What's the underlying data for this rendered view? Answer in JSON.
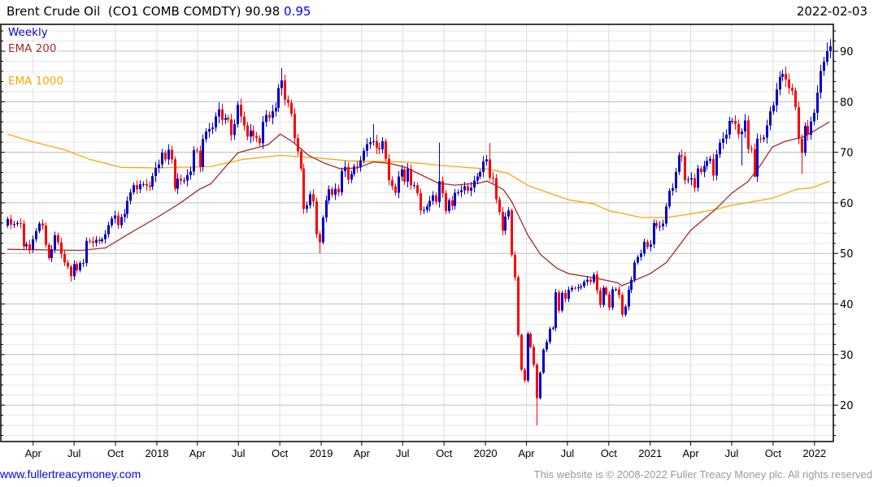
{
  "header": {
    "title": "Brent Crude Oil  (CO1 COMB COMDTY) 90.98",
    "change": "0.95",
    "date": "2022-02-03"
  },
  "legend": {
    "weekly": "Weekly",
    "ema200": "EMA 200",
    "ema1000": "EMA 1000"
  },
  "footer": {
    "link": "www.fullertreacymoney.com",
    "copyright": "This website is © 2008-2022 Fuller Treacy Money plc. All rights reserved"
  },
  "colors": {
    "up": "#0000cc",
    "down": "#ff0000",
    "ema200": "#a52a2a",
    "ema1000": "#ffa500",
    "grid_major": "#bdbdbd",
    "grid_minor": "#e6e6e6"
  },
  "chart_data": {
    "type": "candlestick",
    "title": "Brent Crude Oil (CO1 COMB COMDTY)",
    "ylim": [
      12.8,
      95.3
    ],
    "yticks": [
      20,
      30,
      40,
      50,
      60,
      70,
      80,
      90
    ],
    "grid": true,
    "legend_placement": "top-left",
    "xticks": [
      {
        "date": "2017-04-01",
        "label": "Apr"
      },
      {
        "date": "2017-07-01",
        "label": "Jul"
      },
      {
        "date": "2017-10-01",
        "label": "Oct"
      },
      {
        "date": "2018-01-01",
        "label": "2018"
      },
      {
        "date": "2018-04-01",
        "label": "Apr"
      },
      {
        "date": "2018-07-01",
        "label": "Jul"
      },
      {
        "date": "2018-10-01",
        "label": "Oct"
      },
      {
        "date": "2019-01-01",
        "label": "2019"
      },
      {
        "date": "2019-04-01",
        "label": "Apr"
      },
      {
        "date": "2019-07-01",
        "label": "Jul"
      },
      {
        "date": "2019-10-01",
        "label": "Oct"
      },
      {
        "date": "2020-01-01",
        "label": "2020"
      },
      {
        "date": "2020-04-01",
        "label": "Apr"
      },
      {
        "date": "2020-07-01",
        "label": "Jul"
      },
      {
        "date": "2020-10-01",
        "label": "Oct"
      },
      {
        "date": "2021-01-01",
        "label": "2021"
      },
      {
        "date": "2021-04-01",
        "label": "Apr"
      },
      {
        "date": "2021-07-01",
        "label": "Jul"
      },
      {
        "date": "2021-10-01",
        "label": "Oct"
      },
      {
        "date": "2022-01-01",
        "label": "2022"
      }
    ],
    "candles": {
      "start_date": "2017-02-03",
      "interval_days": 7,
      "first_open": 55.5,
      "default_wick_pct": 1.3,
      "closes": [
        56.8,
        55.7,
        55.8,
        56.0,
        55.9,
        51.4,
        51.8,
        50.8,
        52.8,
        54.4,
        55.9,
        55.5,
        51.7,
        49.1,
        50.8,
        53.6,
        52.2,
        49.9,
        48.2,
        47.4,
        45.5,
        47.9,
        46.7,
        48.1,
        48.1,
        52.5,
        52.4,
        52.1,
        52.7,
        52.4,
        52.8,
        53.8,
        55.6,
        56.9,
        57.5,
        55.6,
        57.2,
        57.8,
        60.4,
        62.1,
        63.5,
        62.7,
        63.7,
        63.7,
        63.4,
        63.2,
        65.3,
        66.9,
        67.6,
        69.9,
        68.6,
        70.5,
        68.6,
        62.8,
        64.8,
        64.4,
        64.4,
        65.5,
        66.2,
        70.4,
        70.3,
        67.1,
        72.6,
        74.1,
        74.6,
        74.9,
        77.1,
        78.5,
        76.4,
        76.8,
        76.5,
        73.4,
        75.6,
        79.4,
        77.1,
        75.3,
        73.1,
        74.3,
        73.2,
        72.8,
        71.8,
        76.0,
        77.4,
        76.8,
        78.1,
        78.8,
        82.7,
        84.2,
        80.4,
        79.8,
        77.6,
        72.8,
        70.2,
        66.8,
        58.8,
        59.5,
        61.7,
        60.3,
        53.8,
        52.2,
        57.1,
        60.5,
        62.7,
        61.6,
        62.8,
        62.1,
        66.3,
        67.1,
        64.6,
        65.7,
        67.2,
        67.0,
        68.4,
        70.3,
        71.6,
        72.0,
        72.2,
        70.9,
        70.6,
        72.2,
        68.7,
        64.5,
        63.3,
        62.0,
        65.2,
        66.6,
        64.2,
        66.7,
        63.5,
        63.5,
        61.9,
        58.5,
        58.6,
        59.3,
        60.4,
        61.5,
        60.2,
        64.3,
        61.9,
        58.4,
        60.5,
        59.4,
        62.0,
        62.1,
        62.5,
        63.3,
        62.4,
        63.0,
        64.4,
        65.2,
        66.1,
        68.2,
        68.6,
        65.0,
        64.9,
        60.7,
        58.2,
        54.5,
        57.3,
        58.5,
        49.7,
        45.3,
        33.9,
        27.0,
        24.9,
        34.1,
        31.5,
        28.0,
        21.4,
        26.4,
        31.0,
        32.5,
        35.1,
        35.3,
        42.3,
        38.7,
        42.2,
        41.0,
        42.8,
        43.2,
        43.1,
        43.3,
        43.5,
        44.4,
        44.8,
        44.4,
        45.8,
        42.7,
        39.8,
        43.2,
        41.9,
        39.3,
        42.9,
        42.9,
        41.8,
        37.9,
        39.5,
        42.8,
        44.8,
        48.2,
        49.3,
        50.0,
        52.3,
        51.3,
        51.8,
        56.0,
        55.4,
        55.4,
        55.9,
        59.3,
        62.4,
        62.9,
        66.1,
        69.4,
        69.2,
        64.5,
        64.6,
        64.9,
        63.0,
        66.8,
        66.1,
        67.3,
        68.3,
        68.7,
        65.4,
        69.6,
        71.9,
        72.7,
        73.5,
        76.2,
        76.2,
        75.6,
        73.6,
        74.1,
        76.3,
        70.7,
        70.6,
        65.2,
        72.7,
        72.6,
        72.9,
        75.3,
        78.1,
        79.3,
        82.4,
        84.9,
        85.5,
        84.4,
        82.7,
        82.2,
        78.9,
        72.7,
        69.9,
        75.2,
        73.5,
        76.1,
        77.8,
        81.8,
        86.1,
        87.9,
        90.0,
        90.98
      ],
      "extremes": [
        {
          "date": "2017-06-23",
          "low": 44.4
        },
        {
          "date": "2018-10-05",
          "high": 86.7
        },
        {
          "date": "2018-12-28",
          "low": 50.0
        },
        {
          "date": "2019-04-26",
          "high": 75.6
        },
        {
          "date": "2019-09-20",
          "high": 71.9
        },
        {
          "date": "2020-01-10",
          "high": 71.8
        },
        {
          "date": "2020-04-24",
          "low": 16.0
        },
        {
          "date": "2021-07-23",
          "low": 67.4
        },
        {
          "date": "2021-08-20",
          "low": 65.0
        },
        {
          "date": "2021-12-03",
          "low": 65.7
        },
        {
          "date": "2022-01-28",
          "high": 91.7
        },
        {
          "date": "2022-02-03",
          "high": 91.7,
          "low": 87.7
        }
      ]
    },
    "series": [
      {
        "name": "EMA 200",
        "points": [
          [
            "2017-02-03",
            50.8
          ],
          [
            "2017-07-16",
            50.6
          ],
          [
            "2017-09-09",
            51.1
          ],
          [
            "2017-11-02",
            54.0
          ],
          [
            "2018-01-01",
            57.1
          ],
          [
            "2018-02-19",
            59.8
          ],
          [
            "2018-04-04",
            62.6
          ],
          [
            "2018-05-01",
            63.8
          ],
          [
            "2018-06-06",
            67.5
          ],
          [
            "2018-06-30",
            69.9
          ],
          [
            "2018-09-05",
            71.5
          ],
          [
            "2018-10-02",
            73.6
          ],
          [
            "2018-10-29",
            72.1
          ],
          [
            "2018-12-04",
            69.4
          ],
          [
            "2019-01-09",
            67.8
          ],
          [
            "2019-02-14",
            66.7
          ],
          [
            "2019-03-22",
            66.9
          ],
          [
            "2019-04-27",
            68.1
          ],
          [
            "2019-06-02",
            67.8
          ],
          [
            "2019-07-08",
            67.0
          ],
          [
            "2019-09-18",
            63.9
          ],
          [
            "2019-10-24",
            63.5
          ],
          [
            "2019-12-17",
            63.9
          ],
          [
            "2020-01-05",
            64.3
          ],
          [
            "2020-02-10",
            62.6
          ],
          [
            "2020-02-28",
            60.3
          ],
          [
            "2020-04-05",
            53.5
          ],
          [
            "2020-05-02",
            49.8
          ],
          [
            "2020-06-07",
            47.1
          ],
          [
            "2020-07-04",
            46.0
          ],
          [
            "2020-08-28",
            45.2
          ],
          [
            "2020-10-21",
            44.2
          ],
          [
            "2020-10-30",
            43.6
          ],
          [
            "2021-01-01",
            46.0
          ],
          [
            "2021-02-06",
            48.2
          ],
          [
            "2021-04-01",
            54.6
          ],
          [
            "2021-05-26",
            58.7
          ],
          [
            "2021-07-01",
            61.9
          ],
          [
            "2021-08-06",
            64.2
          ],
          [
            "2021-09-02",
            67.3
          ],
          [
            "2021-09-29",
            71.0
          ],
          [
            "2021-10-26",
            72.1
          ],
          [
            "2021-12-10",
            73.1
          ],
          [
            "2022-02-03",
            76.0
          ]
        ]
      },
      {
        "name": "EMA 1000",
        "points": [
          [
            "2017-02-03",
            73.6
          ],
          [
            "2017-03-30",
            72.1
          ],
          [
            "2017-06-10",
            70.5
          ],
          [
            "2017-08-04",
            68.6
          ],
          [
            "2017-10-15",
            67.0
          ],
          [
            "2018-01-01",
            66.9
          ],
          [
            "2018-05-01",
            67.2
          ],
          [
            "2018-07-12",
            68.6
          ],
          [
            "2018-10-02",
            69.4
          ],
          [
            "2018-12-22",
            68.9
          ],
          [
            "2019-03-04",
            68.3
          ],
          [
            "2019-07-08",
            68.1
          ],
          [
            "2019-10-06",
            67.3
          ],
          [
            "2020-01-05",
            66.7
          ],
          [
            "2020-02-19",
            65.9
          ],
          [
            "2020-04-05",
            63.4
          ],
          [
            "2020-05-29",
            61.7
          ],
          [
            "2020-07-04",
            60.6
          ],
          [
            "2020-08-28",
            59.8
          ],
          [
            "2020-10-03",
            58.4
          ],
          [
            "2020-12-14",
            57.1
          ],
          [
            "2021-02-06",
            57.1
          ],
          [
            "2021-04-01",
            57.8
          ],
          [
            "2021-05-26",
            58.7
          ],
          [
            "2021-07-01",
            59.5
          ],
          [
            "2021-09-29",
            60.9
          ],
          [
            "2021-11-22",
            62.7
          ],
          [
            "2021-12-28",
            63.0
          ],
          [
            "2022-02-03",
            64.3
          ]
        ]
      }
    ]
  }
}
